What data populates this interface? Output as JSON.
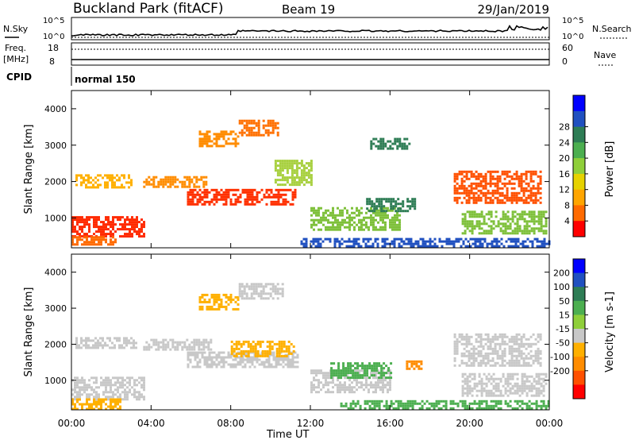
{
  "header": {
    "station": "Buckland Park (fitACF)",
    "beam": "Beam 19",
    "date": "29/Jan/2019"
  },
  "noise_panel": {
    "left_label": "N.Sky",
    "right_label": "N.Search",
    "tick_top": "10^5",
    "tick_bottom": "10^0"
  },
  "freq_panel": {
    "left_label_line1": "Freq.",
    "left_label_line2": "[MHz]",
    "left_tick_top": "18",
    "left_tick_bottom": "8",
    "right_label": "Nave",
    "right_tick_top": "60",
    "right_tick_bottom": "0"
  },
  "cpid": {
    "label": "CPID",
    "mode": "normal 150"
  },
  "axes": {
    "ylabel": "Slant Range [km]",
    "xlabel": "Time UT",
    "x_ticks": [
      "00:00",
      "04:00",
      "08:00",
      "12:00",
      "16:00",
      "20:00",
      "00:00"
    ],
    "y_ticks": [
      "1000",
      "2000",
      "3000",
      "4000"
    ]
  },
  "chart_data": [
    {
      "type": "heatmap",
      "name": "power",
      "colorbar_label": "Power [dB]",
      "colorbar_ticks": [
        "4",
        "8",
        "12",
        "16",
        "20",
        "24",
        "28"
      ],
      "colorbar_colors": [
        "#0000ff",
        "#2050c0",
        "#2e7d55",
        "#4caf50",
        "#8fcf3a",
        "#e6d200",
        "#ffa500",
        "#ff6a00",
        "#ff0000"
      ],
      "ylim": [
        180,
        4500
      ],
      "xlim_hours": [
        0,
        24
      ],
      "regions": [
        {
          "t0": 0.0,
          "t1": 3.6,
          "r0": 500,
          "r1": 1050,
          "color": "#ff2a00"
        },
        {
          "t0": 0.0,
          "t1": 2.2,
          "r0": 300,
          "r1": 500,
          "color": "#ff6a00"
        },
        {
          "t0": 5.8,
          "t1": 11.3,
          "r0": 1350,
          "r1": 1800,
          "color": "#ff3000"
        },
        {
          "t0": 3.6,
          "t1": 6.8,
          "r0": 1850,
          "r1": 2150,
          "color": "#ff8c00"
        },
        {
          "t0": 0.2,
          "t1": 3.0,
          "r0": 1850,
          "r1": 2200,
          "color": "#ffb000"
        },
        {
          "t0": 6.4,
          "t1": 8.4,
          "r0": 3000,
          "r1": 3400,
          "color": "#ff8c00"
        },
        {
          "t0": 8.4,
          "t1": 10.4,
          "r0": 3300,
          "r1": 3700,
          "color": "#ff7000"
        },
        {
          "t0": 10.2,
          "t1": 12.0,
          "r0": 1900,
          "r1": 2600,
          "color": "#a8d040"
        },
        {
          "t0": 12.0,
          "t1": 16.5,
          "r0": 700,
          "r1": 1300,
          "color": "#7ec03a"
        },
        {
          "t0": 14.8,
          "t1": 17.2,
          "r0": 1200,
          "r1": 1550,
          "color": "#2e7d55"
        },
        {
          "t0": 15.0,
          "t1": 17.0,
          "r0": 2900,
          "r1": 3200,
          "color": "#2e7d55"
        },
        {
          "t0": 19.2,
          "t1": 23.6,
          "r0": 1400,
          "r1": 2300,
          "color": "#ff5000"
        },
        {
          "t0": 19.6,
          "t1": 23.9,
          "r0": 600,
          "r1": 1200,
          "color": "#7ec03a"
        },
        {
          "t0": 11.5,
          "t1": 24.0,
          "r0": 200,
          "r1": 450,
          "color": "#2050c0"
        }
      ]
    },
    {
      "type": "heatmap",
      "name": "velocity",
      "colorbar_label": "Velocity [m s-1]",
      "colorbar_ticks": [
        "200",
        "100",
        "50",
        "15",
        "-15",
        "-50",
        "-100",
        "-200"
      ],
      "colorbar_colors": [
        "#0000ff",
        "#2050c0",
        "#2e7d55",
        "#4caf50",
        "#8fcf3a",
        "#c8c8c8",
        "#ffb000",
        "#ff8c00",
        "#ff5000",
        "#ff0000"
      ],
      "ylim": [
        180,
        4500
      ],
      "xlim_hours": [
        0,
        24
      ],
      "regions": [
        {
          "t0": 0.0,
          "t1": 3.6,
          "r0": 500,
          "r1": 1100,
          "color": "#c8c8c8"
        },
        {
          "t0": 0.0,
          "t1": 2.4,
          "r0": 200,
          "r1": 500,
          "color": "#ffb000"
        },
        {
          "t0": 0.2,
          "t1": 3.2,
          "r0": 1900,
          "r1": 2200,
          "color": "#c8c8c8"
        },
        {
          "t0": 3.6,
          "t1": 7.0,
          "r0": 1850,
          "r1": 2150,
          "color": "#c8c8c8"
        },
        {
          "t0": 5.8,
          "t1": 11.4,
          "r0": 1400,
          "r1": 1800,
          "color": "#c8c8c8"
        },
        {
          "t0": 8.0,
          "t1": 11.2,
          "r0": 1650,
          "r1": 2100,
          "color": "#ffb000"
        },
        {
          "t0": 6.4,
          "t1": 8.4,
          "r0": 3000,
          "r1": 3400,
          "color": "#ffb000"
        },
        {
          "t0": 8.4,
          "t1": 10.6,
          "r0": 3300,
          "r1": 3700,
          "color": "#c8c8c8"
        },
        {
          "t0": 12.0,
          "t1": 16.0,
          "r0": 700,
          "r1": 1300,
          "color": "#c8c8c8"
        },
        {
          "t0": 13.0,
          "t1": 16.0,
          "r0": 1100,
          "r1": 1500,
          "color": "#4caf50"
        },
        {
          "t0": 16.8,
          "t1": 17.6,
          "r0": 1300,
          "r1": 1550,
          "color": "#ff8c00"
        },
        {
          "t0": 19.2,
          "t1": 23.6,
          "r0": 1400,
          "r1": 2300,
          "color": "#c8c8c8"
        },
        {
          "t0": 19.6,
          "t1": 23.9,
          "r0": 600,
          "r1": 1200,
          "color": "#c8c8c8"
        },
        {
          "t0": 13.5,
          "t1": 24.0,
          "r0": 200,
          "r1": 450,
          "color": "#4caf50"
        }
      ]
    }
  ]
}
